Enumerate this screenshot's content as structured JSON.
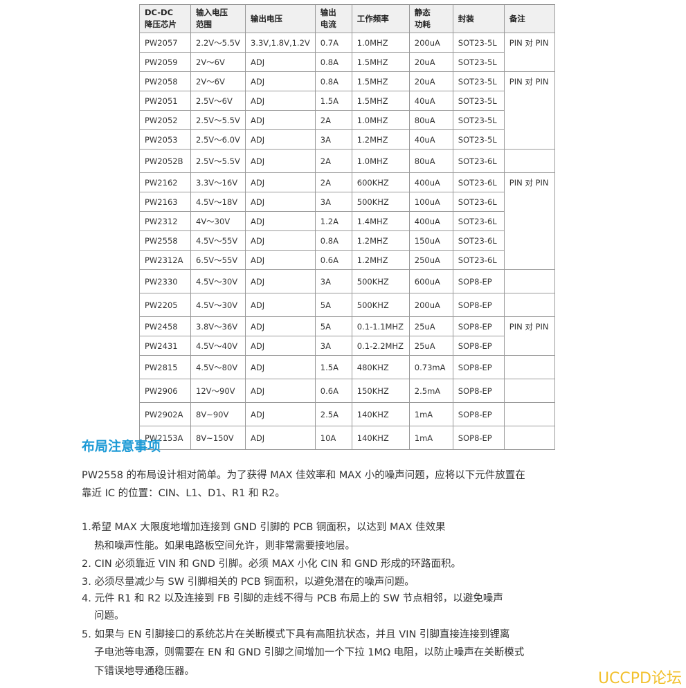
{
  "table": {
    "header": [
      [
        "DC-DC",
        "降压芯片"
      ],
      [
        "输入电压",
        "范围"
      ],
      [
        "输出电压"
      ],
      [
        "输出",
        "电流"
      ],
      [
        "工作频率"
      ],
      [
        "静态",
        "功耗"
      ],
      [
        "封装"
      ],
      [
        "备注"
      ]
    ],
    "rows": [
      [
        "PW2057",
        "2.2V～5.5V",
        "3.3V,1.8V,1.2V",
        "0.7A",
        "1.0MHZ",
        "200uA",
        "SOT23-5L"
      ],
      [
        "PW2059",
        "2V～6V",
        "ADJ",
        "0.8A",
        "1.5MHZ",
        "20uA",
        "SOT23-5L"
      ],
      [
        "PW2058",
        "2V～6V",
        "ADJ",
        "0.8A",
        "1.5MHZ",
        "20uA",
        "SOT23-5L"
      ],
      [
        "PW2051",
        "2.5V～6V",
        "ADJ",
        "1.5A",
        "1.5MHZ",
        "40uA",
        "SOT23-5L"
      ],
      [
        "PW2052",
        "2.5V～5.5V",
        "ADJ",
        "2A",
        "1.0MHZ",
        "80uA",
        "SOT23-5L"
      ],
      [
        "PW2053",
        "2.5V～6.0V",
        "ADJ",
        "3A",
        "1.2MHZ",
        "40uA",
        "SOT23-5L"
      ],
      [
        "PW2052B",
        "2.5V～5.5V",
        "ADJ",
        "2A",
        "1.0MHZ",
        "80uA",
        "SOT23-6L"
      ],
      [
        "PW2162",
        "3.3V～16V",
        "ADJ",
        "2A",
        "600KHZ",
        "400uA",
        "SOT23-6L"
      ],
      [
        "PW2163",
        "4.5V～18V",
        "ADJ",
        "3A",
        "500KHZ",
        "100uA",
        "SOT23-6L"
      ],
      [
        "PW2312",
        "4V～30V",
        "ADJ",
        "1.2A",
        "1.4MHZ",
        "400uA",
        "SOT23-6L"
      ],
      [
        "PW2558",
        "4.5V～55V",
        "ADJ",
        "0.8A",
        "1.2MHZ",
        "150uA",
        "SOT23-6L"
      ],
      [
        "PW2312A",
        "6.5V～55V",
        "ADJ",
        "0.6A",
        "1.2MHZ",
        "250uA",
        "SOT23-6L"
      ],
      [
        "PW2330",
        "4.5V～30V",
        "ADJ",
        "3A",
        "500KHZ",
        "600uA",
        "SOP8-EP"
      ],
      [
        "PW2205",
        "4.5V～30V",
        "ADJ",
        "5A",
        "500KHZ",
        "200uA",
        "SOP8-EP"
      ],
      [
        "PW2458",
        "3.8V～36V",
        "ADJ",
        "5A",
        "0.1-1.1MHZ",
        "25uA",
        "SOP8-EP"
      ],
      [
        "PW2431",
        "4.5V～40V",
        "ADJ",
        "3A",
        "0.1-2.2MHZ",
        "25uA",
        "SOP8-EP"
      ],
      [
        "PW2815",
        "4.5V～80V",
        "ADJ",
        "1.5A",
        "480KHZ",
        "0.73mA",
        "SOP8-EP"
      ],
      [
        "PW2906",
        "12V～90V",
        "ADJ",
        "0.6A",
        "150KHZ",
        "2.5mA",
        "SOP8-EP"
      ],
      [
        "PW2902A",
        "8V~90V",
        "ADJ",
        "2.5A",
        "140KHZ",
        "1mA",
        "SOP8-EP"
      ],
      [
        "PW2153A",
        "8V~150V",
        "ADJ",
        "10A",
        "140KHZ",
        "1mA",
        "SOP8-EP"
      ]
    ],
    "remarks": [
      "PIN 对 PIN",
      "PIN 对 PIN",
      "PIN 对 PIN",
      "PIN 对 PIN"
    ]
  },
  "section": {
    "title": "布局注意事项",
    "intro": [
      "PW2558 的布局设计相对简单。为了获得 MAX 佳效率和 MAX 小的噪声问题，应将以下元件放置在",
      "靠近 IC 的位置：CIN、L1、D1、R1 和 R2。"
    ],
    "items": [
      [
        "1.希望 MAX 大限度地增加连接到 GND 引脚的 PCB 铜面积，以达到 MAX 佳效果",
        "热和噪声性能。如果电路板空间允许，则非常需要接地层。"
      ],
      [
        "2. CIN  必须靠近  VIN  和  GND  引脚。必须 MAX 小化  CIN  和  GND  形成的环路面积。"
      ],
      [
        "3.  必须尽量减少与 SW 引脚相关的 PCB 铜面积，以避免潜在的噪声问题。"
      ],
      [
        "4.  元件  R1  和  R2  以及连接到  FB  引脚的走线不得与  PCB  布局上的  SW  节点相邻，以避免噪声",
        "问题。"
      ],
      [
        "5.  如果与  EN  引脚接口的系统芯片在关断模式下具有高阻抗状态，并且 VIN 引脚直接连接到锂离",
        "子电池等电源，则需要在 EN 和 GND 引脚之间增加一个下拉 1MΩ 电阻，以防止噪声在关断模式",
        "下错误地导通稳压器。"
      ]
    ]
  },
  "watermark": "UCCPD论坛"
}
